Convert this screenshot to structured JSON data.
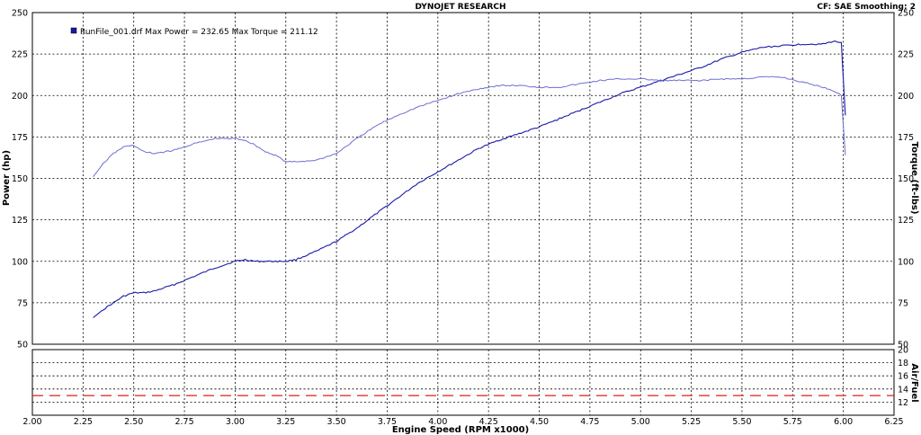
{
  "header": {
    "title": "DYNOJET RESEARCH",
    "settings": "CF: SAE  Smoothing: 2"
  },
  "legend": {
    "text": "RunFile_001.drf Max Power = 232.65    Max Torque = 211.12",
    "swatch_color": "#1a1aa8"
  },
  "chart_data": {
    "type": "line",
    "title": "DYNOJET RESEARCH",
    "xlabel": "Engine Speed (RPM x1000)",
    "x_ticks": [
      2.0,
      2.25,
      2.5,
      2.75,
      3.0,
      3.25,
      3.5,
      3.75,
      4.0,
      4.25,
      4.5,
      4.75,
      5.0,
      5.25,
      5.5,
      5.75,
      6.0,
      6.25
    ],
    "xlim": [
      2.0,
      6.25
    ],
    "grid": true,
    "legend_position": "top-left",
    "main_panel": {
      "ylabel_left": "Power (hp)",
      "ylabel_right": "Torque (ft-lbs)",
      "ylim": [
        50,
        250
      ],
      "y_ticks": [
        50,
        75,
        100,
        125,
        150,
        175,
        200,
        225,
        250
      ],
      "series": [
        {
          "name": "Power",
          "color": "#1a1aa8",
          "x": [
            2.3,
            2.35,
            2.4,
            2.45,
            2.5,
            2.55,
            2.6,
            2.7,
            2.8,
            2.9,
            3.0,
            3.05,
            3.1,
            3.15,
            3.2,
            3.25,
            3.3,
            3.4,
            3.5,
            3.6,
            3.7,
            3.8,
            3.9,
            4.0,
            4.1,
            4.2,
            4.3,
            4.4,
            4.5,
            4.6,
            4.7,
            4.8,
            4.9,
            5.0,
            5.1,
            5.2,
            5.3,
            5.4,
            5.5,
            5.6,
            5.7,
            5.8,
            5.9,
            5.95,
            5.99,
            6.01
          ],
          "values": [
            66,
            71,
            75,
            79,
            81,
            81,
            82,
            86,
            91,
            96,
            100,
            101,
            100,
            100,
            100,
            100,
            101,
            106,
            112,
            120,
            129,
            138,
            147,
            154,
            161,
            168,
            173,
            177,
            181,
            186,
            191,
            196,
            201,
            205,
            209,
            213,
            217,
            222,
            226,
            229,
            230,
            231,
            231,
            232.65,
            232,
            188
          ]
        },
        {
          "name": "Torque",
          "color": "#6e6ed2",
          "x": [
            2.3,
            2.35,
            2.4,
            2.45,
            2.5,
            2.55,
            2.6,
            2.7,
            2.8,
            2.9,
            3.0,
            3.05,
            3.1,
            3.15,
            3.2,
            3.25,
            3.3,
            3.4,
            3.5,
            3.6,
            3.7,
            3.8,
            3.9,
            4.0,
            4.1,
            4.2,
            4.3,
            4.4,
            4.5,
            4.6,
            4.7,
            4.8,
            4.9,
            5.0,
            5.1,
            5.2,
            5.3,
            5.4,
            5.5,
            5.6,
            5.7,
            5.8,
            5.9,
            5.95,
            5.99,
            6.01
          ],
          "values": [
            151,
            159,
            165,
            169,
            170,
            166,
            165,
            167,
            171,
            174,
            174,
            173,
            170,
            166,
            164,
            160,
            160,
            161,
            165,
            174,
            182,
            188,
            193,
            197,
            201,
            204,
            206,
            206,
            205,
            205,
            207,
            209,
            210,
            210,
            209,
            209,
            209,
            210,
            210,
            211.12,
            211,
            208,
            205,
            203,
            200,
            164
          ]
        }
      ]
    },
    "airfuel_panel": {
      "ylabel_right": "Air/Fuel",
      "ylim": [
        10,
        20
      ],
      "y_ticks": [
        12,
        14,
        16,
        18,
        20
      ],
      "series": [
        {
          "name": "Target",
          "color": "#e21c1c",
          "style": "dashed",
          "x": [
            2.0,
            6.25
          ],
          "values": [
            13,
            13
          ]
        }
      ]
    }
  }
}
